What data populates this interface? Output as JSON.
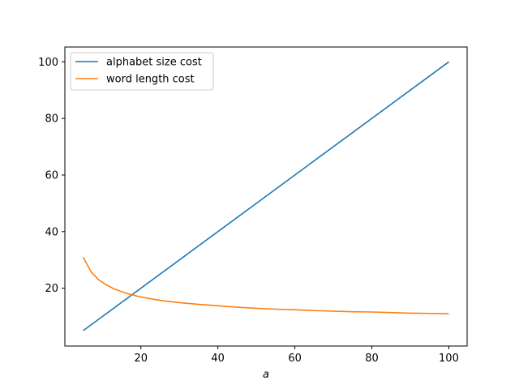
{
  "chart_data": {
    "type": "line",
    "title": "",
    "xlabel": "a",
    "ylabel": "",
    "xlim": [
      0.25,
      104.75
    ],
    "ylim": [
      -0.43,
      105.24
    ],
    "xticks": [
      20,
      40,
      60,
      80,
      100
    ],
    "yticks": [
      20,
      40,
      60,
      80,
      100
    ],
    "grid": false,
    "legend_position": "upper left",
    "series": [
      {
        "name": "alphabet size cost",
        "color": "#1f77b4",
        "x": [
          5,
          100
        ],
        "y": [
          5,
          100
        ]
      },
      {
        "name": "word length cost",
        "color": "#ff7f0e",
        "x": [
          5,
          7,
          9,
          11,
          13,
          15,
          17,
          20,
          25,
          30,
          35,
          40,
          45,
          50,
          55,
          60,
          65,
          70,
          75,
          80,
          85,
          90,
          95,
          100
        ],
        "y": [
          31.0,
          25.9,
          23.0,
          21.2,
          19.8,
          18.8,
          17.9,
          16.9,
          15.7,
          14.9,
          14.3,
          13.8,
          13.3,
          12.9,
          12.6,
          12.4,
          12.1,
          11.9,
          11.7,
          11.6,
          11.4,
          11.2,
          11.1,
          11.0
        ]
      }
    ]
  }
}
